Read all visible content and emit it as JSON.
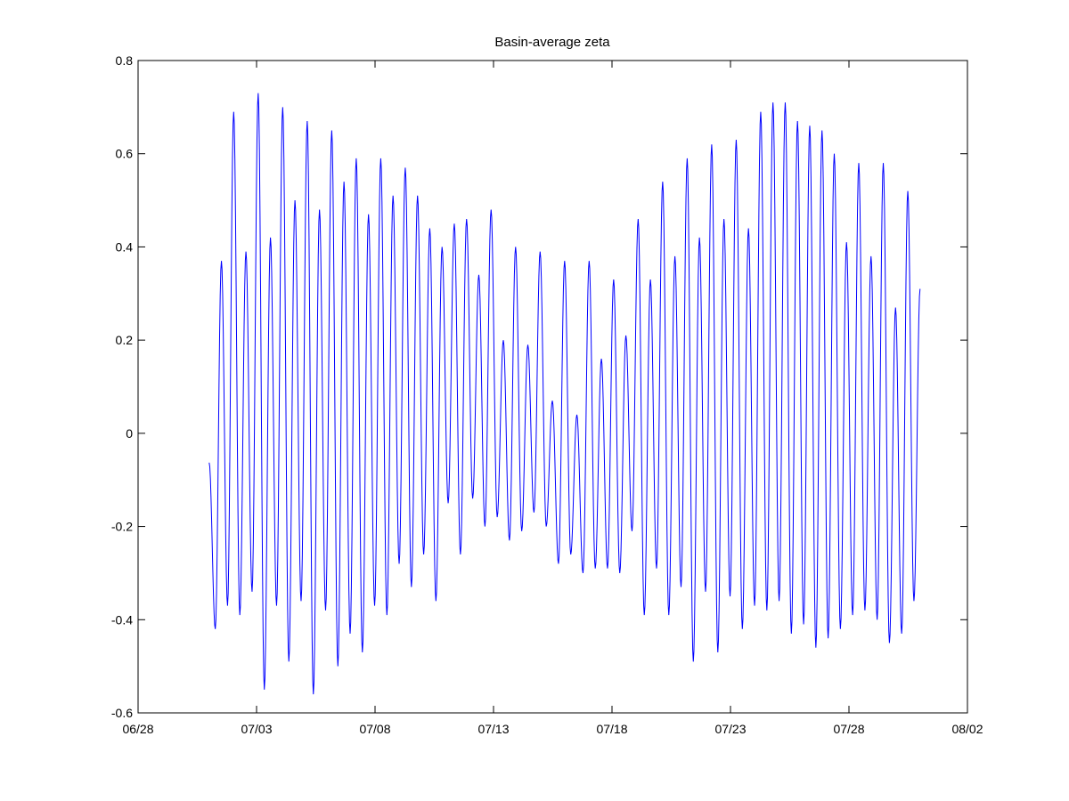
{
  "chart_data": {
    "type": "line",
    "title": "Basin-average zeta",
    "xlabel": "",
    "ylabel": "",
    "x_axis_type": "date",
    "xlim": [
      "06/28",
      "08/02"
    ],
    "ylim": [
      -0.6,
      0.8
    ],
    "grid": false,
    "legend": "none",
    "xticks": [
      "06/28",
      "07/03",
      "07/08",
      "07/13",
      "07/18",
      "07/23",
      "07/28",
      "08/02"
    ],
    "yticks": [
      "-0.6",
      "-0.4",
      "-0.2",
      "0",
      "0.2",
      "0.4",
      "0.6",
      "0.8"
    ],
    "series_color": "#0000ff",
    "series": [
      {
        "x_start": "07/01",
        "x_end": "07/31",
        "sampling": "hourly",
        "peaks": [
          [
            "07/01",
            0.37
          ],
          [
            "07/02",
            0.69
          ],
          [
            "07/02",
            0.39
          ],
          [
            "07/03",
            0.73
          ],
          [
            "07/03",
            0.42
          ],
          [
            "07/04",
            0.7
          ],
          [
            "07/04",
            0.5
          ],
          [
            "07/05",
            0.67
          ],
          [
            "07/05",
            0.48
          ],
          [
            "07/06",
            0.65
          ],
          [
            "07/06",
            0.54
          ],
          [
            "07/07",
            0.59
          ],
          [
            "07/07",
            0.47
          ],
          [
            "07/08",
            0.59
          ],
          [
            "07/08",
            0.51
          ],
          [
            "07/09",
            0.57
          ],
          [
            "07/09",
            0.51
          ],
          [
            "07/10",
            0.44
          ],
          [
            "07/10",
            0.4
          ],
          [
            "07/11",
            0.45
          ],
          [
            "07/11",
            0.46
          ],
          [
            "07/12",
            0.34
          ],
          [
            "07/12",
            0.48
          ],
          [
            "07/13",
            0.2
          ],
          [
            "07/13",
            0.4
          ],
          [
            "07/14",
            0.19
          ],
          [
            "07/14",
            0.39
          ],
          [
            "07/15",
            0.07
          ],
          [
            "07/15",
            0.37
          ],
          [
            "07/16",
            0.04
          ],
          [
            "07/16",
            0.37
          ],
          [
            "07/17",
            0.16
          ],
          [
            "07/17",
            0.33
          ],
          [
            "07/18",
            0.21
          ],
          [
            "07/18",
            0.46
          ],
          [
            "07/19",
            0.33
          ],
          [
            "07/19",
            0.54
          ],
          [
            "07/20",
            0.38
          ],
          [
            "07/20",
            0.59
          ],
          [
            "07/21",
            0.42
          ],
          [
            "07/21",
            0.62
          ],
          [
            "07/22",
            0.46
          ],
          [
            "07/22",
            0.63
          ],
          [
            "07/23",
            0.44
          ],
          [
            "07/23",
            0.69
          ],
          [
            "07/24",
            0.71
          ],
          [
            "07/24",
            0.71
          ],
          [
            "07/25",
            0.67
          ],
          [
            "07/25",
            0.66
          ],
          [
            "07/26",
            0.65
          ],
          [
            "07/26",
            0.6
          ],
          [
            "07/27",
            0.41
          ],
          [
            "07/27",
            0.58
          ],
          [
            "07/28",
            0.38
          ],
          [
            "07/28",
            0.58
          ],
          [
            "07/29",
            0.27
          ],
          [
            "07/29",
            0.52
          ],
          [
            "07/30",
            0.31
          ],
          [
            "07/30",
            0.58
          ]
        ],
        "troughs": [
          [
            "07/01",
            -0.42
          ],
          [
            "07/02",
            -0.37
          ],
          [
            "07/02",
            -0.39
          ],
          [
            "07/03",
            -0.34
          ],
          [
            "07/03",
            -0.55
          ],
          [
            "07/04",
            -0.37
          ],
          [
            "07/04",
            -0.49
          ],
          [
            "07/05",
            -0.36
          ],
          [
            "07/05",
            -0.56
          ],
          [
            "07/06",
            -0.38
          ],
          [
            "07/06",
            -0.5
          ],
          [
            "07/07",
            -0.43
          ],
          [
            "07/07",
            -0.47
          ],
          [
            "07/08",
            -0.37
          ],
          [
            "07/08",
            -0.39
          ],
          [
            "07/09",
            -0.28
          ],
          [
            "07/09",
            -0.33
          ],
          [
            "07/10",
            -0.26
          ],
          [
            "07/10",
            -0.36
          ],
          [
            "07/11",
            -0.15
          ],
          [
            "07/11",
            -0.26
          ],
          [
            "07/12",
            -0.14
          ],
          [
            "07/12",
            -0.2
          ],
          [
            "07/13",
            -0.18
          ],
          [
            "07/13",
            -0.23
          ],
          [
            "07/14",
            -0.21
          ],
          [
            "07/14",
            -0.17
          ],
          [
            "07/15",
            -0.2
          ],
          [
            "07/15",
            -0.28
          ],
          [
            "07/16",
            -0.26
          ],
          [
            "07/16",
            -0.3
          ],
          [
            "07/17",
            -0.29
          ],
          [
            "07/17",
            -0.29
          ],
          [
            "07/18",
            -0.3
          ],
          [
            "07/18",
            -0.21
          ],
          [
            "07/19",
            -0.39
          ],
          [
            "07/19",
            -0.29
          ],
          [
            "07/20",
            -0.39
          ],
          [
            "07/20",
            -0.33
          ],
          [
            "07/21",
            -0.49
          ],
          [
            "07/21",
            -0.34
          ],
          [
            "07/22",
            -0.47
          ],
          [
            "07/22",
            -0.35
          ],
          [
            "07/23",
            -0.42
          ],
          [
            "07/23",
            -0.37
          ],
          [
            "07/24",
            -0.38
          ],
          [
            "07/24",
            -0.36
          ],
          [
            "07/25",
            -0.43
          ],
          [
            "07/25",
            -0.41
          ],
          [
            "07/26",
            -0.46
          ],
          [
            "07/26",
            -0.44
          ],
          [
            "07/27",
            -0.42
          ],
          [
            "07/27",
            -0.39
          ],
          [
            "07/28",
            -0.38
          ],
          [
            "07/28",
            -0.4
          ],
          [
            "07/29",
            -0.45
          ],
          [
            "07/29",
            -0.43
          ],
          [
            "07/30",
            -0.36
          ]
        ]
      }
    ]
  }
}
